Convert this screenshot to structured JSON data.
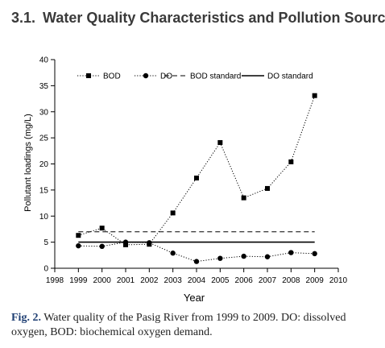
{
  "section": {
    "number": "3.1.",
    "title": "Water Quality Characteristics and Pollution Sources"
  },
  "caption": {
    "label": "Fig. 2.",
    "text": "Water quality of the Pasig River from 1999 to 2009. DO: dissolved oxygen, BOD: biochemical oxygen demand."
  },
  "colors": {
    "heading": "#3a3a3a",
    "caption_label": "#1f3f73",
    "ink": "#000000"
  },
  "chart_data": {
    "type": "line",
    "title": "",
    "xlabel": "Year",
    "ylabel": "Pollutant loadings (mg/L)",
    "xlim": [
      1998,
      2010
    ],
    "ylim": [
      0,
      40
    ],
    "x_ticks": [
      1998,
      1999,
      2000,
      2001,
      2002,
      2003,
      2004,
      2005,
      2006,
      2007,
      2008,
      2009,
      2010
    ],
    "y_ticks": [
      0,
      5,
      10,
      15,
      20,
      25,
      30,
      35,
      40
    ],
    "grid": false,
    "legend_position": "top",
    "series": [
      {
        "name": "BOD",
        "style": "dotted",
        "marker": "square",
        "x": [
          1999,
          2000,
          2001,
          2002,
          2003,
          2004,
          2005,
          2006,
          2007,
          2008,
          2009
        ],
        "values": [
          6.3,
          7.7,
          4.5,
          4.6,
          10.6,
          17.3,
          24.1,
          13.5,
          15.3,
          20.4,
          33.1
        ]
      },
      {
        "name": "DO",
        "style": "dotted",
        "marker": "circle",
        "x": [
          1999,
          2000,
          2001,
          2002,
          2003,
          2004,
          2005,
          2006,
          2007,
          2008,
          2009
        ],
        "values": [
          4.3,
          4.2,
          5.0,
          4.9,
          2.9,
          1.3,
          1.9,
          2.3,
          2.2,
          3.0,
          2.8
        ]
      },
      {
        "name": "BOD standard",
        "style": "dashed",
        "marker": "none",
        "x": [
          1999,
          2009
        ],
        "values": [
          7,
          7
        ]
      },
      {
        "name": "DO standard",
        "style": "solid",
        "marker": "none",
        "x": [
          1999,
          2009
        ],
        "values": [
          5,
          5
        ]
      }
    ]
  }
}
